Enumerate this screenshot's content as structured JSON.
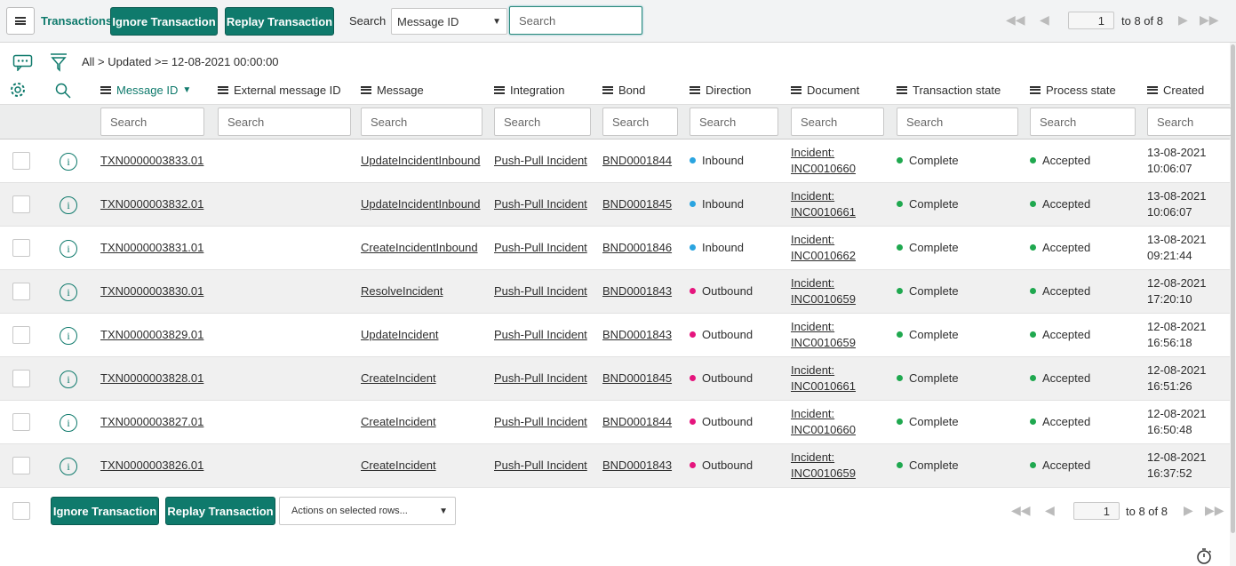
{
  "header": {
    "title": "Transactions",
    "buttons": [
      "Ignore Transaction",
      "Replay Transaction"
    ],
    "search_label": "Search",
    "search_field": "Message ID",
    "search_placeholder": "Search",
    "page": "1",
    "page_range": "to 8 of 8"
  },
  "breadcrumb": "All > Updated >= 12-08-2021 00:00:00",
  "columns": [
    "Message ID",
    "External message ID",
    "Message",
    "Integration",
    "Bond",
    "Direction",
    "Document",
    "Transaction state",
    "Process state",
    "Created"
  ],
  "column_search_placeholder": "Search",
  "rows": [
    {
      "message_id": "TXN0000003833.01",
      "message": "UpdateIncidentInbound",
      "integration": "Push-Pull Incident",
      "bond": "BND0001844",
      "direction": {
        "label": "Inbound",
        "color": "#2aa4e0"
      },
      "document": "Incident: INC0010660",
      "transaction_state": "Complete",
      "process_state": "Accepted",
      "created": "13-08-2021 10:06:07"
    },
    {
      "message_id": "TXN0000003832.01",
      "message": "UpdateIncidentInbound",
      "integration": "Push-Pull Incident",
      "bond": "BND0001845",
      "direction": {
        "label": "Inbound",
        "color": "#2aa4e0"
      },
      "document": "Incident: INC0010661",
      "transaction_state": "Complete",
      "process_state": "Accepted",
      "created": "13-08-2021 10:06:07"
    },
    {
      "message_id": "TXN0000003831.01",
      "message": "CreateIncidentInbound",
      "integration": "Push-Pull Incident",
      "bond": "BND0001846",
      "direction": {
        "label": "Inbound",
        "color": "#2aa4e0"
      },
      "document": "Incident: INC0010662",
      "transaction_state": "Complete",
      "process_state": "Accepted",
      "created": "13-08-2021 09:21:44"
    },
    {
      "message_id": "TXN0000003830.01",
      "message": "ResolveIncident",
      "integration": "Push-Pull Incident",
      "bond": "BND0001843",
      "direction": {
        "label": "Outbound",
        "color": "#e5157d"
      },
      "document": "Incident: INC0010659",
      "transaction_state": "Complete",
      "process_state": "Accepted",
      "created": "12-08-2021 17:20:10"
    },
    {
      "message_id": "TXN0000003829.01",
      "message": "UpdateIncident",
      "integration": "Push-Pull Incident",
      "bond": "BND0001843",
      "direction": {
        "label": "Outbound",
        "color": "#e5157d"
      },
      "document": "Incident: INC0010659",
      "transaction_state": "Complete",
      "process_state": "Accepted",
      "created": "12-08-2021 16:56:18"
    },
    {
      "message_id": "TXN0000003828.01",
      "message": "CreateIncident",
      "integration": "Push-Pull Incident",
      "bond": "BND0001845",
      "direction": {
        "label": "Outbound",
        "color": "#e5157d"
      },
      "document": "Incident: INC0010661",
      "transaction_state": "Complete",
      "process_state": "Accepted",
      "created": "12-08-2021 16:51:26"
    },
    {
      "message_id": "TXN0000003827.01",
      "message": "CreateIncident",
      "integration": "Push-Pull Incident",
      "bond": "BND0001844",
      "direction": {
        "label": "Outbound",
        "color": "#e5157d"
      },
      "document": "Incident: INC0010660",
      "transaction_state": "Complete",
      "process_state": "Accepted",
      "created": "12-08-2021 16:50:48"
    },
    {
      "message_id": "TXN0000003826.01",
      "message": "CreateIncident",
      "integration": "Push-Pull Incident",
      "bond": "BND0001843",
      "direction": {
        "label": "Outbound",
        "color": "#e5157d"
      },
      "document": "Incident: INC0010659",
      "transaction_state": "Complete",
      "process_state": "Accepted",
      "created": "12-08-2021 16:37:52"
    }
  ],
  "footer": {
    "buttons": [
      "Ignore Transaction",
      "Replay Transaction"
    ],
    "actions": "Actions on selected rows...",
    "page": "1",
    "page_range": "to 8 of 8"
  }
}
